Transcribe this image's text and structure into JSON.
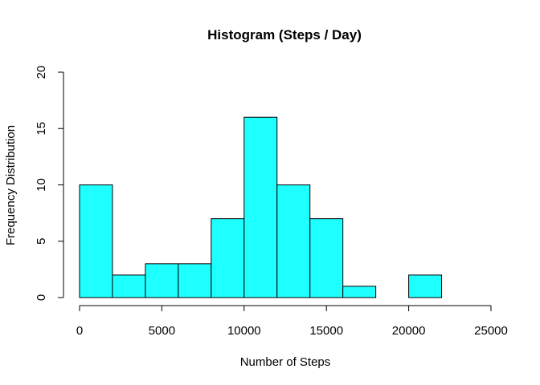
{
  "chart_data": {
    "type": "bar",
    "title": "Histogram (Steps / Day)",
    "xlabel": "Number of Steps",
    "ylabel": "Frequency Distribution",
    "bin_edges": [
      0,
      2000,
      4000,
      6000,
      8000,
      10000,
      12000,
      14000,
      16000,
      18000,
      20000,
      22000
    ],
    "values": [
      10,
      2,
      3,
      3,
      7,
      16,
      10,
      7,
      1,
      0,
      2
    ],
    "xlim": [
      0,
      25000
    ],
    "ylim": [
      0,
      20
    ],
    "xticks": [
      0,
      5000,
      10000,
      15000,
      20000,
      25000
    ],
    "yticks": [
      0,
      5,
      10,
      15,
      20
    ],
    "bar_color": "#1EFFFF",
    "grid": false,
    "legend": "none"
  }
}
